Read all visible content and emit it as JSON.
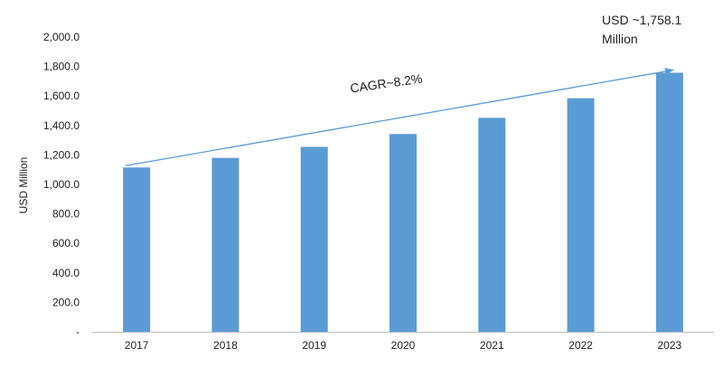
{
  "chart_data": {
    "type": "bar",
    "categories": [
      "2017",
      "2018",
      "2019",
      "2020",
      "2021",
      "2022",
      "2023"
    ],
    "values": [
      1115,
      1180,
      1255,
      1342,
      1452,
      1585,
      1758.1
    ],
    "ylabel": "USD Million",
    "ylim": [
      0,
      2000
    ],
    "y_ticks": [
      "-",
      "200.0",
      "400.0",
      "600.0",
      "800.0",
      "1,000.0",
      "1,200.0",
      "1,400.0",
      "1,600.0",
      "1,800.0",
      "2,000.0"
    ],
    "grid": false,
    "bar_color": "#5b9bd5",
    "trend_arrow_color": "#5b9bd5",
    "annotations": {
      "cagr": "CAGR~8.2%",
      "final_value_line1": "USD ~1,758.1",
      "final_value_line2": "Million"
    }
  }
}
